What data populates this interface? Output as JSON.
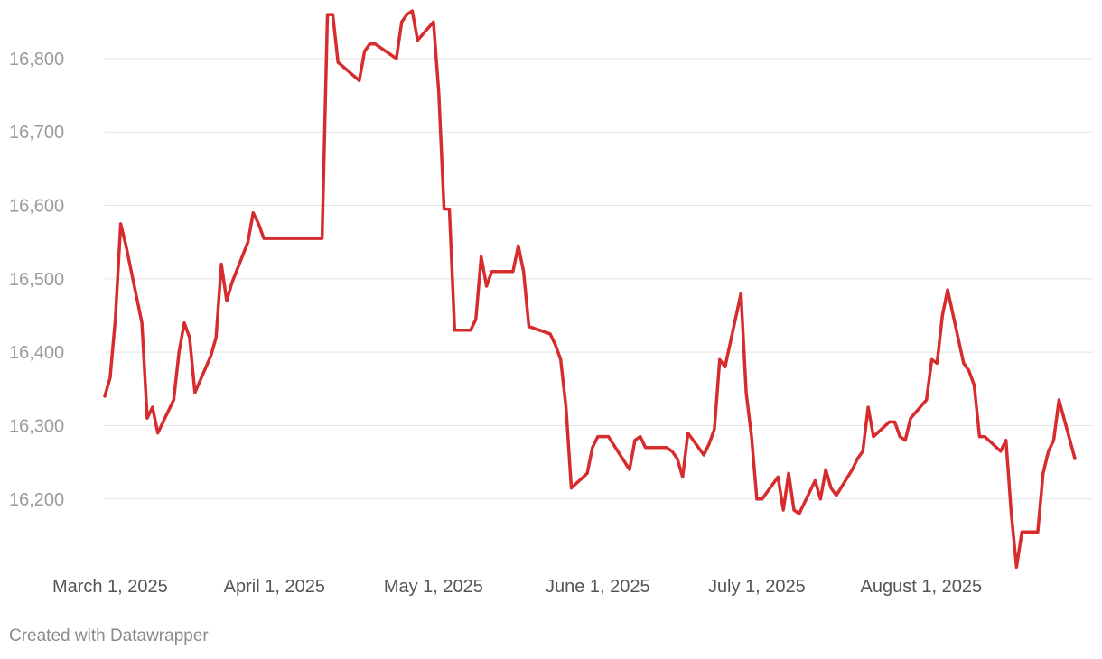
{
  "chart_data": {
    "type": "line",
    "title": "",
    "xlabel": "",
    "ylabel": "",
    "ylim": [
      16105,
      16870
    ],
    "grid": true,
    "y_ticks": [
      "16,200",
      "16,300",
      "16,400",
      "16,500",
      "16,600",
      "16,700",
      "16,800"
    ],
    "x_ticks": [
      {
        "label": "March 1, 2025",
        "date": "2025-03-01"
      },
      {
        "label": "April 1, 2025",
        "date": "2025-04-01"
      },
      {
        "label": "May 1, 2025",
        "date": "2025-05-01"
      },
      {
        "label": "June 1, 2025",
        "date": "2025-06-01"
      },
      {
        "label": "July 1, 2025",
        "date": "2025-07-01"
      },
      {
        "label": "August 1, 2025",
        "date": "2025-08-01"
      }
    ],
    "series": [
      {
        "color": "#d62c2e",
        "points": [
          [
            "2025-02-28",
            16340
          ],
          [
            "2025-03-01",
            16365
          ],
          [
            "2025-03-02",
            16445
          ],
          [
            "2025-03-03",
            16575
          ],
          [
            "2025-03-04",
            16545
          ],
          [
            "2025-03-07",
            16440
          ],
          [
            "2025-03-08",
            16310
          ],
          [
            "2025-03-09",
            16325
          ],
          [
            "2025-03-10",
            16290
          ],
          [
            "2025-03-13",
            16335
          ],
          [
            "2025-03-14",
            16400
          ],
          [
            "2025-03-15",
            16440
          ],
          [
            "2025-03-16",
            16420
          ],
          [
            "2025-03-17",
            16345
          ],
          [
            "2025-03-20",
            16395
          ],
          [
            "2025-03-21",
            16420
          ],
          [
            "2025-03-22",
            16520
          ],
          [
            "2025-03-23",
            16470
          ],
          [
            "2025-03-24",
            16495
          ],
          [
            "2025-03-27",
            16550
          ],
          [
            "2025-03-28",
            16590
          ],
          [
            "2025-03-29",
            16575
          ],
          [
            "2025-03-30",
            16555
          ],
          [
            "2025-04-03",
            16555
          ],
          [
            "2025-04-10",
            16555
          ],
          [
            "2025-04-11",
            16860
          ],
          [
            "2025-04-12",
            16860
          ],
          [
            "2025-04-13",
            16795
          ],
          [
            "2025-04-17",
            16770
          ],
          [
            "2025-04-18",
            16810
          ],
          [
            "2025-04-19",
            16820
          ],
          [
            "2025-04-20",
            16820
          ],
          [
            "2025-04-24",
            16800
          ],
          [
            "2025-04-25",
            16850
          ],
          [
            "2025-04-26",
            16860
          ],
          [
            "2025-04-27",
            16865
          ],
          [
            "2025-04-28",
            16825
          ],
          [
            "2025-05-01",
            16850
          ],
          [
            "2025-05-02",
            16755
          ],
          [
            "2025-05-03",
            16595
          ],
          [
            "2025-05-04",
            16595
          ],
          [
            "2025-05-05",
            16430
          ],
          [
            "2025-05-08",
            16430
          ],
          [
            "2025-05-09",
            16445
          ],
          [
            "2025-05-10",
            16530
          ],
          [
            "2025-05-11",
            16490
          ],
          [
            "2025-05-12",
            16510
          ],
          [
            "2025-05-16",
            16510
          ],
          [
            "2025-05-17",
            16545
          ],
          [
            "2025-05-18",
            16510
          ],
          [
            "2025-05-19",
            16435
          ],
          [
            "2025-05-23",
            16425
          ],
          [
            "2025-05-24",
            16410
          ],
          [
            "2025-05-25",
            16390
          ],
          [
            "2025-05-26",
            16325
          ],
          [
            "2025-05-27",
            16215
          ],
          [
            "2025-05-30",
            16235
          ],
          [
            "2025-05-31",
            16270
          ],
          [
            "2025-06-01",
            16285
          ],
          [
            "2025-06-03",
            16285
          ],
          [
            "2025-06-07",
            16240
          ],
          [
            "2025-06-08",
            16280
          ],
          [
            "2025-06-09",
            16285
          ],
          [
            "2025-06-10",
            16270
          ],
          [
            "2025-06-14",
            16270
          ],
          [
            "2025-06-15",
            16265
          ],
          [
            "2025-06-16",
            16255
          ],
          [
            "2025-06-17",
            16230
          ],
          [
            "2025-06-18",
            16290
          ],
          [
            "2025-06-21",
            16260
          ],
          [
            "2025-06-22",
            16275
          ],
          [
            "2025-06-23",
            16295
          ],
          [
            "2025-06-24",
            16390
          ],
          [
            "2025-06-25",
            16380
          ],
          [
            "2025-06-28",
            16480
          ],
          [
            "2025-06-29",
            16345
          ],
          [
            "2025-06-30",
            16285
          ],
          [
            "2025-07-01",
            16200
          ],
          [
            "2025-07-02",
            16200
          ],
          [
            "2025-07-05",
            16230
          ],
          [
            "2025-07-06",
            16185
          ],
          [
            "2025-07-07",
            16235
          ],
          [
            "2025-07-08",
            16185
          ],
          [
            "2025-07-09",
            16180
          ],
          [
            "2025-07-12",
            16225
          ],
          [
            "2025-07-13",
            16200
          ],
          [
            "2025-07-14",
            16240
          ],
          [
            "2025-07-15",
            16215
          ],
          [
            "2025-07-16",
            16205
          ],
          [
            "2025-07-19",
            16240
          ],
          [
            "2025-07-20",
            16255
          ],
          [
            "2025-07-21",
            16265
          ],
          [
            "2025-07-22",
            16325
          ],
          [
            "2025-07-23",
            16285
          ],
          [
            "2025-07-26",
            16305
          ],
          [
            "2025-07-27",
            16305
          ],
          [
            "2025-07-28",
            16285
          ],
          [
            "2025-07-29",
            16280
          ],
          [
            "2025-07-30",
            16310
          ],
          [
            "2025-08-02",
            16335
          ],
          [
            "2025-08-03",
            16390
          ],
          [
            "2025-08-04",
            16385
          ],
          [
            "2025-08-05",
            16450
          ],
          [
            "2025-08-06",
            16485
          ],
          [
            "2025-08-09",
            16385
          ],
          [
            "2025-08-10",
            16375
          ],
          [
            "2025-08-11",
            16355
          ],
          [
            "2025-08-12",
            16285
          ],
          [
            "2025-08-13",
            16285
          ],
          [
            "2025-08-16",
            16265
          ],
          [
            "2025-08-17",
            16280
          ],
          [
            "2025-08-18",
            16180
          ],
          [
            "2025-08-19",
            16107
          ],
          [
            "2025-08-20",
            16155
          ],
          [
            "2025-08-23",
            16155
          ],
          [
            "2025-08-24",
            16235
          ],
          [
            "2025-08-25",
            16265
          ],
          [
            "2025-08-26",
            16280
          ],
          [
            "2025-08-27",
            16335
          ],
          [
            "2025-08-30",
            16255
          ]
        ]
      }
    ]
  },
  "footer": {
    "credit": "Created with Datawrapper"
  }
}
